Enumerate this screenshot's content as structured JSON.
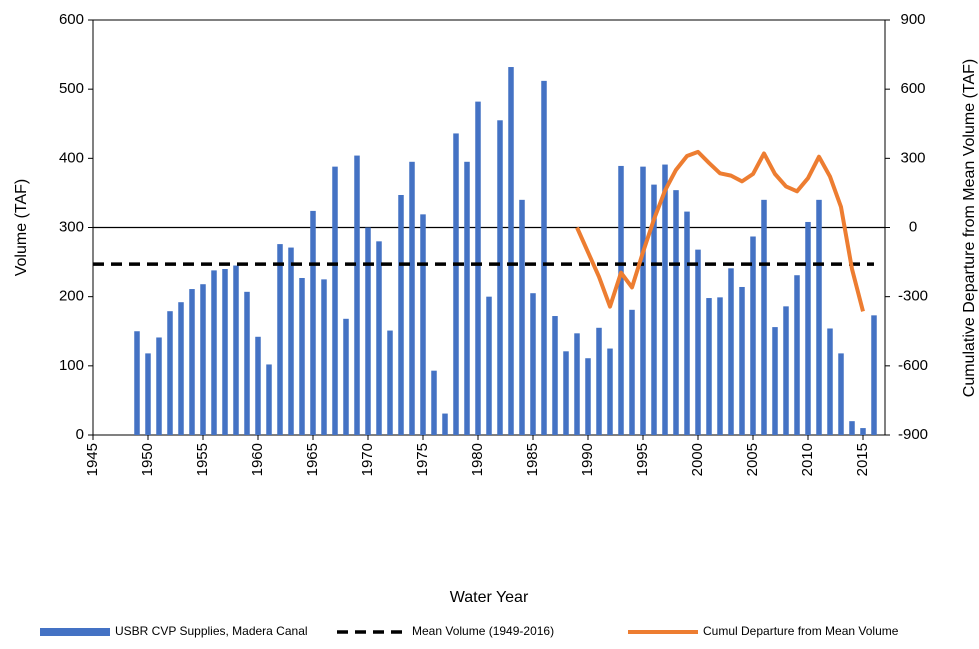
{
  "chart_data": {
    "type": "bar",
    "xlabel": "Water Year",
    "ylabel": "Volume (TAF)",
    "y2label": "Cumulative Departure from Mean Volume (TAF)",
    "xlim": [
      1945,
      2017
    ],
    "xticks": [
      1945,
      1950,
      1955,
      1960,
      1965,
      1970,
      1975,
      1980,
      1985,
      1990,
      1995,
      2000,
      2005,
      2010,
      2015
    ],
    "ylim": [
      0,
      600
    ],
    "yticks": [
      0,
      100,
      200,
      300,
      400,
      500,
      600
    ],
    "y2lim": [
      -900,
      900
    ],
    "y2ticks": [
      -900,
      -600,
      -300,
      0,
      300,
      600,
      900
    ],
    "zero_line": true,
    "legend": "bottom",
    "series": [
      {
        "name": "USBR CVP Supplies, Madera Canal",
        "type": "bar",
        "color": "#4472c4",
        "x": [
          1949,
          1950,
          1951,
          1952,
          1953,
          1954,
          1955,
          1956,
          1957,
          1958,
          1959,
          1960,
          1961,
          1962,
          1963,
          1964,
          1965,
          1966,
          1967,
          1968,
          1969,
          1970,
          1971,
          1972,
          1973,
          1974,
          1975,
          1976,
          1977,
          1978,
          1979,
          1980,
          1981,
          1982,
          1983,
          1984,
          1985,
          1986,
          1987,
          1988,
          1989,
          1990,
          1991,
          1992,
          1993,
          1994,
          1995,
          1996,
          1997,
          1998,
          1999,
          2000,
          2001,
          2002,
          2003,
          2004,
          2005,
          2006,
          2007,
          2008,
          2009,
          2010,
          2011,
          2012,
          2013,
          2014,
          2015,
          2016
        ],
        "values": [
          150,
          118,
          141,
          179,
          192,
          211,
          218,
          238,
          240,
          245,
          207,
          142,
          102,
          276,
          271,
          227,
          324,
          225,
          388,
          168,
          404,
          300,
          280,
          151,
          347,
          395,
          319,
          93,
          31,
          436,
          395,
          482,
          200,
          455,
          532,
          340,
          205,
          512,
          172,
          121,
          147,
          111,
          155,
          125,
          389,
          181,
          388,
          362,
          391,
          354,
          323,
          268,
          198,
          199,
          241,
          214,
          287,
          340,
          156,
          186,
          231,
          308,
          340,
          154,
          118,
          20,
          10,
          173
        ]
      },
      {
        "name": "Mean Volume (1949-2016)",
        "type": "line",
        "dash": true,
        "color": "#000000",
        "x": [
          1945,
          2016
        ],
        "values": [
          247,
          247
        ]
      },
      {
        "name": "Cumul Departure from Mean Volume",
        "type": "line",
        "axis": "y2",
        "color": "#ed7d31",
        "x": [
          1989,
          1990,
          1991,
          1992,
          1993,
          1994,
          1995,
          1996,
          1997,
          1998,
          1999,
          2000,
          2001,
          2002,
          2003,
          2004,
          2005,
          2006,
          2007,
          2008,
          2009,
          2010,
          2011,
          2012,
          2013,
          2014,
          2015
        ],
        "values": [
          0,
          -107,
          -214,
          -343,
          -196,
          -260,
          -107,
          36,
          160,
          250,
          310,
          328,
          280,
          235,
          225,
          200,
          232,
          321,
          232,
          178,
          157,
          214,
          307,
          221,
          89,
          -180,
          -364
        ]
      }
    ]
  }
}
